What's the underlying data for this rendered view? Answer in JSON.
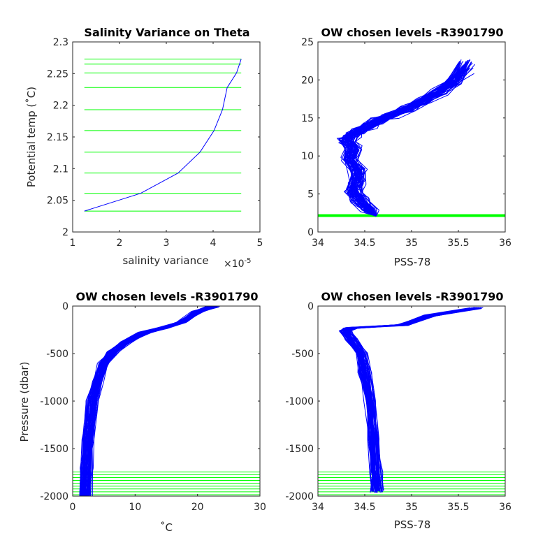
{
  "colors": {
    "profile": "#0000ff",
    "level": "#00ff00",
    "axis": "#262626",
    "background": "#ffffff"
  },
  "chart_data": [
    {
      "id": "tl",
      "type": "line",
      "title": "Salinity Variance on Theta",
      "xlabel": "salinity variance",
      "x_exponent": "×10",
      "x_exponent_power": "-5",
      "ylabel": "Potential temp (˚C)",
      "xlim": [
        1,
        5
      ],
      "ylim": [
        2,
        2.3
      ],
      "xticks": [
        1,
        2,
        3,
        4,
        5
      ],
      "xtick_labels": [
        "1",
        "2",
        "3",
        "4",
        "5"
      ],
      "yticks": [
        2,
        2.05,
        2.1,
        2.15,
        2.2,
        2.25,
        2.3
      ],
      "ytick_labels": [
        "2",
        "2.05",
        "2.1",
        "2.15",
        "2.2",
        "2.25",
        "2.3"
      ],
      "series": [
        {
          "x": [
            1.25,
            2.45,
            3.25,
            3.72,
            4.02,
            4.2,
            4.3,
            4.5,
            4.6
          ],
          "y": [
            2.033,
            2.061,
            2.093,
            2.126,
            2.16,
            2.193,
            2.228,
            2.251,
            2.273
          ]
        }
      ],
      "hlines": [
        2.033,
        2.061,
        2.093,
        2.126,
        2.16,
        2.193,
        2.228,
        2.251,
        2.265,
        2.273
      ],
      "hline_xrange": [
        1.25,
        4.6
      ]
    },
    {
      "id": "tr",
      "type": "line",
      "title": "OW chosen levels -R3901790",
      "xlabel": "PSS-78",
      "ylabel": "",
      "xlim": [
        34,
        36
      ],
      "ylim": [
        0,
        25
      ],
      "xticks": [
        34,
        34.5,
        35,
        35.5,
        36
      ],
      "xtick_labels": [
        "34",
        "34.5",
        "35",
        "35.5",
        "36"
      ],
      "yticks": [
        0,
        5,
        10,
        15,
        20,
        25
      ],
      "ytick_labels": [
        "0",
        "5",
        "10",
        "15",
        "20",
        "25"
      ],
      "series": [
        {
          "x": [
            34.62,
            34.55,
            34.45,
            34.38,
            34.42,
            34.42,
            34.35,
            34.38,
            34.31,
            34.36,
            34.44,
            34.54,
            34.64,
            34.78,
            34.95,
            35.12,
            35.3,
            35.45,
            35.58
          ],
          "y": [
            2.1,
            3,
            4.2,
            5.5,
            6.5,
            8,
            9.5,
            11,
            12,
            12.7,
            13.3,
            14,
            14.6,
            15.3,
            16.2,
            17.2,
            18.4,
            19.8,
            21.8
          ]
        }
      ],
      "series_spread": {
        "x": 0.14,
        "y": 1.6
      },
      "profile_count": 60,
      "hlines": [
        2.033,
        2.061,
        2.093,
        2.126,
        2.16,
        2.193,
        2.228,
        2.251,
        2.265,
        2.273
      ]
    },
    {
      "id": "bl",
      "type": "line",
      "title": "OW chosen levels -R3901790",
      "xlabel": "˚C",
      "ylabel": "Pressure (dbar)",
      "xlim": [
        0,
        30
      ],
      "ylim": [
        -2000,
        0
      ],
      "xticks": [
        0,
        10,
        20,
        30
      ],
      "xtick_labels": [
        "0",
        "10",
        "20",
        "30"
      ],
      "yticks": [
        -2000,
        -1500,
        -1000,
        -500,
        0
      ],
      "ytick_labels": [
        "-2000",
        "-1500",
        "-1000",
        "-500",
        "0"
      ],
      "series": [
        {
          "x": [
            22.5,
            20,
            17.5,
            14.5,
            11.5,
            8.5,
            6.5,
            5,
            4,
            3.2,
            2.5,
            2.25,
            2.1
          ],
          "y": [
            -5,
            -60,
            -170,
            -230,
            -280,
            -380,
            -480,
            -600,
            -800,
            -1000,
            -1400,
            -1700,
            -2000
          ]
        }
      ],
      "series_spread": {
        "x": 1.4,
        "y": 25
      },
      "profile_count": 60,
      "hlines": [
        -1745,
        -1775,
        -1805,
        -1835,
        -1865,
        -1895,
        -1925,
        -1955,
        -1985,
        -2000
      ]
    },
    {
      "id": "br",
      "type": "line",
      "title": "OW chosen levels -R3901790",
      "xlabel": "PSS-78",
      "ylabel": "",
      "xlim": [
        34,
        36
      ],
      "ylim": [
        -2000,
        0
      ],
      "xticks": [
        34,
        34.5,
        35,
        35.5,
        36
      ],
      "xtick_labels": [
        "34",
        "34.5",
        "35",
        "35.5",
        "36"
      ],
      "yticks": [
        -2000,
        -1500,
        -1000,
        -500,
        0
      ],
      "ytick_labels": [
        "-2000",
        "-1500",
        "-1000",
        "-500",
        "0"
      ],
      "series": [
        {
          "x": [
            35.7,
            35.2,
            34.9,
            34.35,
            34.3,
            34.36,
            34.46,
            34.5,
            34.56,
            34.6,
            34.62,
            34.63
          ],
          "y": [
            -20,
            -100,
            -200,
            -230,
            -260,
            -350,
            -500,
            -700,
            -1000,
            -1400,
            -1750,
            -1950
          ]
        }
      ],
      "series_spread": {
        "x": 0.1,
        "y": 25
      },
      "profile_count": 60,
      "hlines": [
        -1745,
        -1775,
        -1805,
        -1835,
        -1865,
        -1895,
        -1925,
        -1955,
        -1985,
        -2000
      ]
    }
  ]
}
